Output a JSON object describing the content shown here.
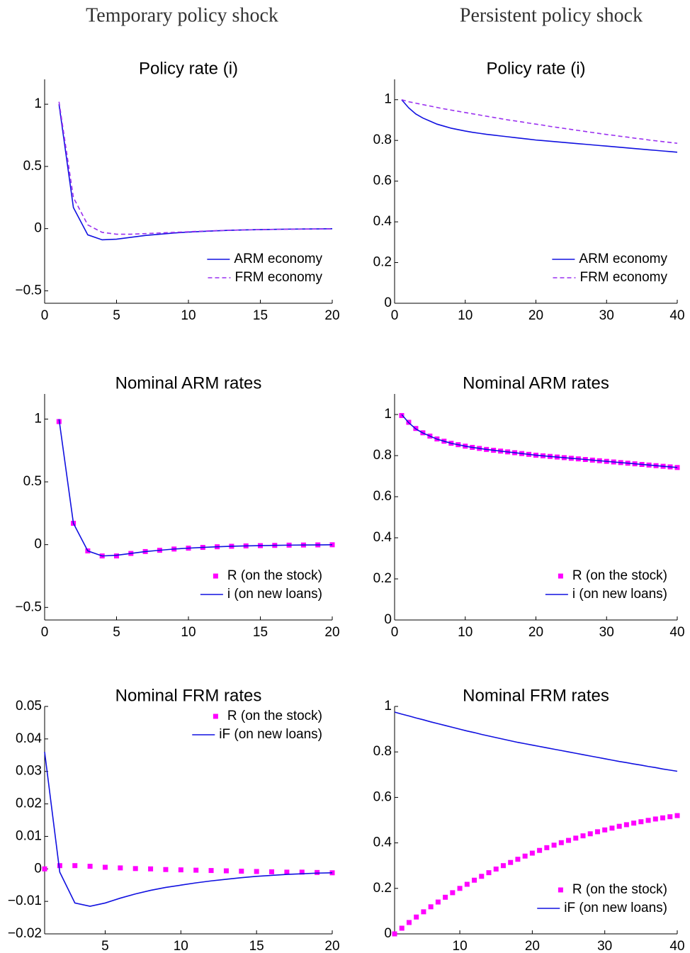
{
  "column_titles": [
    "Temporary policy shock",
    "Persistent policy shock"
  ],
  "chart_data": [
    {
      "type": "line",
      "title": "Policy rate (i)",
      "legend": "lower right",
      "x": [
        1,
        2,
        3,
        4,
        5,
        6,
        7,
        8,
        9,
        10,
        11,
        12,
        13,
        14,
        15,
        16,
        17,
        18,
        19,
        20
      ],
      "series": [
        {
          "name": "ARM economy",
          "color": "#1010e0",
          "style": "solid",
          "values": [
            1,
            0.17,
            -0.05,
            -0.09,
            -0.085,
            -0.07,
            -0.055,
            -0.045,
            -0.035,
            -0.028,
            -0.022,
            -0.017,
            -0.013,
            -0.01,
            -0.008,
            -0.006,
            -0.004,
            -0.003,
            -0.002,
            -0.001
          ]
        },
        {
          "name": "FRM economy",
          "color": "#9a30f0",
          "style": "dashed",
          "values": [
            1.02,
            0.25,
            0.03,
            -0.03,
            -0.045,
            -0.045,
            -0.04,
            -0.035,
            -0.03,
            -0.025,
            -0.02,
            -0.016,
            -0.013,
            -0.01,
            -0.008,
            -0.006,
            -0.005,
            -0.004,
            -0.003,
            -0.002
          ]
        }
      ],
      "xlim": [
        0,
        20
      ],
      "xticks": [
        0,
        5,
        10,
        15,
        20
      ],
      "ylim": [
        -0.6,
        1.2
      ],
      "yticks": [
        {
          "value": -0.5,
          "label": "−0.5"
        },
        0,
        0.5,
        1
      ]
    },
    {
      "type": "line",
      "title": "Policy rate (i)",
      "legend": "lower right",
      "x": [
        1,
        2,
        3,
        4,
        5,
        6,
        7,
        8,
        9,
        10,
        11,
        12,
        13,
        14,
        15,
        16,
        17,
        18,
        19,
        20,
        21,
        22,
        23,
        24,
        25,
        26,
        27,
        28,
        29,
        30,
        31,
        32,
        33,
        34,
        35,
        36,
        37,
        38,
        39,
        40
      ],
      "series": [
        {
          "name": "ARM economy",
          "color": "#1010e0",
          "style": "solid",
          "values": [
            1.0,
            0.96,
            0.93,
            0.91,
            0.895,
            0.88,
            0.87,
            0.86,
            0.853,
            0.846,
            0.84,
            0.835,
            0.83,
            0.826,
            0.822,
            0.818,
            0.814,
            0.81,
            0.806,
            0.802,
            0.799,
            0.796,
            0.793,
            0.79,
            0.787,
            0.784,
            0.781,
            0.778,
            0.775,
            0.772,
            0.769,
            0.766,
            0.763,
            0.76,
            0.757,
            0.754,
            0.751,
            0.748,
            0.745,
            0.742
          ]
        },
        {
          "name": "FRM economy",
          "color": "#9a30f0",
          "style": "dashed",
          "values": [
            1.0,
            0.99,
            0.983,
            0.976,
            0.969,
            0.962,
            0.955,
            0.949,
            0.943,
            0.937,
            0.931,
            0.925,
            0.919,
            0.913,
            0.907,
            0.901,
            0.896,
            0.891,
            0.885,
            0.88,
            0.875,
            0.869,
            0.864,
            0.859,
            0.854,
            0.849,
            0.844,
            0.839,
            0.834,
            0.829,
            0.825,
            0.82,
            0.816,
            0.811,
            0.807,
            0.802,
            0.798,
            0.794,
            0.79,
            0.786
          ]
        }
      ],
      "xlim": [
        0,
        40
      ],
      "xticks": [
        0,
        10,
        20,
        30,
        40
      ],
      "ylim": [
        0,
        1.1
      ],
      "yticks": [
        0,
        0.2,
        0.4,
        0.6,
        0.8,
        1
      ]
    },
    {
      "type": "line",
      "title": "Nominal ARM rates",
      "legend": "lower right",
      "x": [
        1,
        2,
        3,
        4,
        5,
        6,
        7,
        8,
        9,
        10,
        11,
        12,
        13,
        14,
        15,
        16,
        17,
        18,
        19,
        20
      ],
      "series": [
        {
          "name": "R (on the stock)",
          "color": "#ff00ff",
          "style": "markers",
          "values": [
            0.98,
            0.17,
            -0.05,
            -0.09,
            -0.09,
            -0.07,
            -0.055,
            -0.045,
            -0.035,
            -0.028,
            -0.022,
            -0.017,
            -0.013,
            -0.01,
            -0.008,
            -0.006,
            -0.004,
            -0.003,
            -0.002,
            -0.001
          ]
        },
        {
          "name": "i (on new loans)",
          "color": "#1010e0",
          "style": "solid",
          "values": [
            1,
            0.17,
            -0.05,
            -0.09,
            -0.085,
            -0.07,
            -0.055,
            -0.045,
            -0.035,
            -0.028,
            -0.022,
            -0.017,
            -0.013,
            -0.01,
            -0.008,
            -0.006,
            -0.004,
            -0.003,
            -0.002,
            -0.001
          ]
        }
      ],
      "xlim": [
        0,
        20
      ],
      "xticks": [
        0,
        5,
        10,
        15,
        20
      ],
      "ylim": [
        -0.6,
        1.2
      ],
      "yticks": [
        {
          "value": -0.5,
          "label": "−0.5"
        },
        0,
        0.5,
        1
      ]
    },
    {
      "type": "line",
      "title": "Nominal ARM rates",
      "legend": "lower right",
      "x": [
        1,
        2,
        3,
        4,
        5,
        6,
        7,
        8,
        9,
        10,
        11,
        12,
        13,
        14,
        15,
        16,
        17,
        18,
        19,
        20,
        21,
        22,
        23,
        24,
        25,
        26,
        27,
        28,
        29,
        30,
        31,
        32,
        33,
        34,
        35,
        36,
        37,
        38,
        39,
        40
      ],
      "series": [
        {
          "name": "R (on the stock)",
          "color": "#ff00ff",
          "style": "markers",
          "values": [
            0.995,
            0.962,
            0.932,
            0.911,
            0.895,
            0.881,
            0.87,
            0.86,
            0.853,
            0.846,
            0.84,
            0.835,
            0.83,
            0.826,
            0.822,
            0.818,
            0.814,
            0.81,
            0.806,
            0.802,
            0.799,
            0.796,
            0.793,
            0.79,
            0.787,
            0.784,
            0.781,
            0.778,
            0.775,
            0.772,
            0.769,
            0.766,
            0.763,
            0.76,
            0.757,
            0.754,
            0.751,
            0.748,
            0.745,
            0.742
          ]
        },
        {
          "name": "i (on new loans)",
          "color": "#1010e0",
          "style": "solid",
          "values": [
            1.0,
            0.96,
            0.93,
            0.91,
            0.895,
            0.88,
            0.87,
            0.86,
            0.853,
            0.846,
            0.84,
            0.835,
            0.83,
            0.826,
            0.822,
            0.818,
            0.814,
            0.81,
            0.806,
            0.802,
            0.799,
            0.796,
            0.793,
            0.79,
            0.787,
            0.784,
            0.781,
            0.778,
            0.775,
            0.772,
            0.769,
            0.766,
            0.763,
            0.76,
            0.757,
            0.754,
            0.751,
            0.748,
            0.745,
            0.742
          ]
        }
      ],
      "xlim": [
        0,
        40
      ],
      "xticks": [
        0,
        10,
        20,
        30,
        40
      ],
      "ylim": [
        0,
        1.1
      ],
      "yticks": [
        0,
        0.2,
        0.4,
        0.6,
        0.8,
        1
      ]
    },
    {
      "type": "line",
      "title": "Nominal FRM rates",
      "legend": "upper right",
      "x": [
        1,
        2,
        3,
        4,
        5,
        6,
        7,
        8,
        9,
        10,
        11,
        12,
        13,
        14,
        15,
        16,
        17,
        18,
        19,
        20
      ],
      "series": [
        {
          "name": "R (on the stock)",
          "color": "#ff00ff",
          "style": "markers",
          "values": [
            0,
            0.001,
            0.001,
            0.0008,
            0.0005,
            0.0003,
            0.0001,
            0,
            -0.0002,
            -0.0003,
            -0.0004,
            -0.0005,
            -0.0006,
            -0.0007,
            -0.0008,
            -0.0009,
            -0.001,
            -0.001,
            -0.0011,
            -0.0012
          ]
        },
        {
          "name": "iF (on new loans)",
          "color": "#1010e0",
          "style": "solid",
          "values": [
            0.036,
            -0.001,
            -0.0105,
            -0.0115,
            -0.0105,
            -0.009,
            -0.0077,
            -0.0066,
            -0.0057,
            -0.005,
            -0.0043,
            -0.0037,
            -0.0032,
            -0.0027,
            -0.0023,
            -0.002,
            -0.0017,
            -0.0015,
            -0.0013,
            -0.0012
          ]
        }
      ],
      "xlim": [
        1,
        20
      ],
      "xticks": [
        5,
        10,
        15,
        20
      ],
      "ylim": [
        -0.02,
        0.05
      ],
      "yticks": [
        {
          "value": -0.02,
          "label": "−0.02"
        },
        {
          "value": -0.01,
          "label": "−0.01"
        },
        0,
        0.01,
        0.02,
        0.03,
        0.04,
        0.05
      ]
    },
    {
      "type": "line",
      "title": "Nominal FRM rates",
      "legend": "lower right",
      "x": [
        1,
        2,
        3,
        4,
        5,
        6,
        7,
        8,
        9,
        10,
        11,
        12,
        13,
        14,
        15,
        16,
        17,
        18,
        19,
        20,
        21,
        22,
        23,
        24,
        25,
        26,
        27,
        28,
        29,
        30,
        31,
        32,
        33,
        34,
        35,
        36,
        37,
        38,
        39,
        40
      ],
      "series": [
        {
          "name": "R (on the stock)",
          "color": "#ff00ff",
          "style": "markers",
          "values": [
            0,
            0.025,
            0.05,
            0.074,
            0.097,
            0.119,
            0.14,
            0.161,
            0.181,
            0.2,
            0.218,
            0.236,
            0.253,
            0.269,
            0.285,
            0.3,
            0.314,
            0.328,
            0.342,
            0.355,
            0.367,
            0.379,
            0.39,
            0.401,
            0.411,
            0.421,
            0.431,
            0.44,
            0.449,
            0.457,
            0.465,
            0.473,
            0.48,
            0.487,
            0.493,
            0.499,
            0.505,
            0.51,
            0.515,
            0.52
          ]
        },
        {
          "name": "iF (on new loans)",
          "color": "#1010e0",
          "style": "solid",
          "values": [
            0.975,
            0.966,
            0.958,
            0.949,
            0.941,
            0.932,
            0.924,
            0.916,
            0.908,
            0.9,
            0.892,
            0.885,
            0.877,
            0.87,
            0.863,
            0.856,
            0.849,
            0.842,
            0.836,
            0.83,
            0.824,
            0.818,
            0.812,
            0.806,
            0.8,
            0.794,
            0.788,
            0.782,
            0.776,
            0.77,
            0.764,
            0.758,
            0.753,
            0.747,
            0.742,
            0.736,
            0.731,
            0.725,
            0.72,
            0.715
          ]
        }
      ],
      "xlim": [
        1,
        40
      ],
      "xticks": [
        10,
        20,
        30,
        40
      ],
      "ylim": [
        0,
        1
      ],
      "yticks": [
        0,
        0.2,
        0.4,
        0.6,
        0.8,
        1
      ]
    }
  ]
}
